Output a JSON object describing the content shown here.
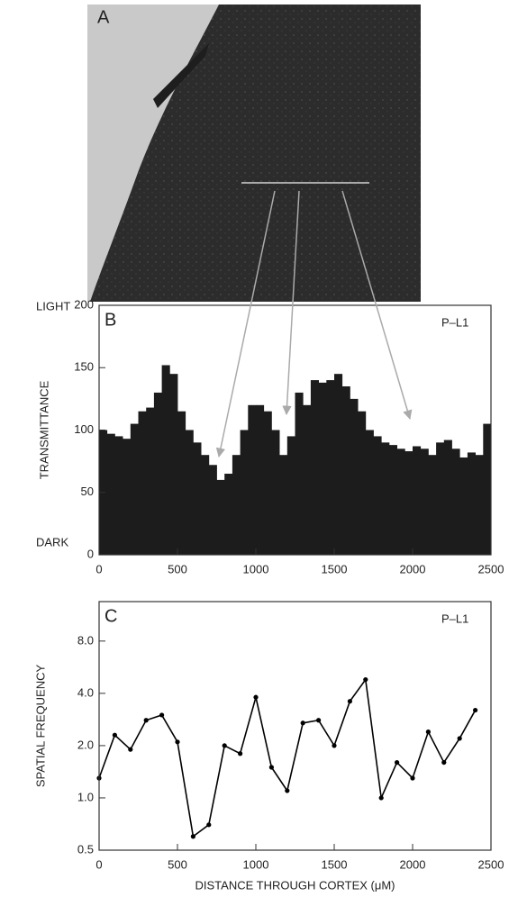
{
  "photo": {
    "label": "A"
  },
  "chart_data": [
    {
      "type": "histogram",
      "label": "B",
      "annotation": "P–L1",
      "y_label": "TRANSMITTANCE",
      "y_end_labels": [
        "LIGHT",
        "DARK"
      ],
      "color": "#1c1c1c",
      "bins": [
        0,
        50,
        100,
        150,
        200,
        250,
        300,
        350,
        400,
        450,
        500,
        550,
        600,
        650,
        700,
        750,
        800,
        850,
        900,
        950,
        1000,
        1050,
        1100,
        1150,
        1200,
        1250,
        1300,
        1350,
        1400,
        1450,
        1500,
        1550,
        1600,
        1650,
        1700,
        1750,
        1800,
        1850,
        1900,
        1950,
        2000,
        2050,
        2100,
        2150,
        2200,
        2250,
        2300,
        2350,
        2400,
        2450,
        2500
      ],
      "values": [
        100,
        97,
        95,
        93,
        105,
        115,
        118,
        130,
        152,
        145,
        115,
        100,
        90,
        80,
        72,
        60,
        65,
        80,
        100,
        120,
        120,
        115,
        100,
        80,
        95,
        130,
        120,
        140,
        138,
        140,
        145,
        135,
        125,
        115,
        100,
        95,
        90,
        88,
        85,
        83,
        87,
        85,
        80,
        90,
        92,
        85,
        78,
        82,
        80,
        105
      ],
      "xlim": [
        0,
        2500
      ],
      "xticks": [
        0,
        500,
        1000,
        1500,
        2000,
        2500
      ],
      "ylim": [
        0,
        200
      ],
      "yticks": [
        0,
        50,
        100,
        150,
        200
      ]
    },
    {
      "type": "line",
      "label": "C",
      "annotation": "P–L1",
      "y_label": "SPATIAL FREQUENCY",
      "x_label": "DISTANCE THROUGH CORTEX (μM)",
      "color": "#000000",
      "log_y": true,
      "x": [
        0,
        100,
        200,
        300,
        400,
        500,
        600,
        700,
        800,
        900,
        1000,
        1100,
        1200,
        1300,
        1400,
        1500,
        1600,
        1700,
        1800,
        1900,
        2000,
        2100,
        2200,
        2300,
        2400
      ],
      "values": [
        1.3,
        2.3,
        1.9,
        2.8,
        3.0,
        2.1,
        0.6,
        0.7,
        2.0,
        1.8,
        3.8,
        1.5,
        1.1,
        2.7,
        2.8,
        2.0,
        3.6,
        4.8,
        1.0,
        1.6,
        1.3,
        2.4,
        1.6,
        2.2,
        3.2
      ],
      "xlim": [
        0,
        2500
      ],
      "xticks": [
        0,
        500,
        1000,
        1500,
        2000,
        2500
      ],
      "ylim": [
        0.5,
        13.5
      ],
      "yticks": [
        0.5,
        {
          "value": 1,
          "label": "1.0"
        },
        {
          "value": 2,
          "label": "2.0"
        },
        {
          "value": 4,
          "label": "4.0"
        },
        {
          "value": 8,
          "label": "8.0"
        }
      ]
    }
  ]
}
